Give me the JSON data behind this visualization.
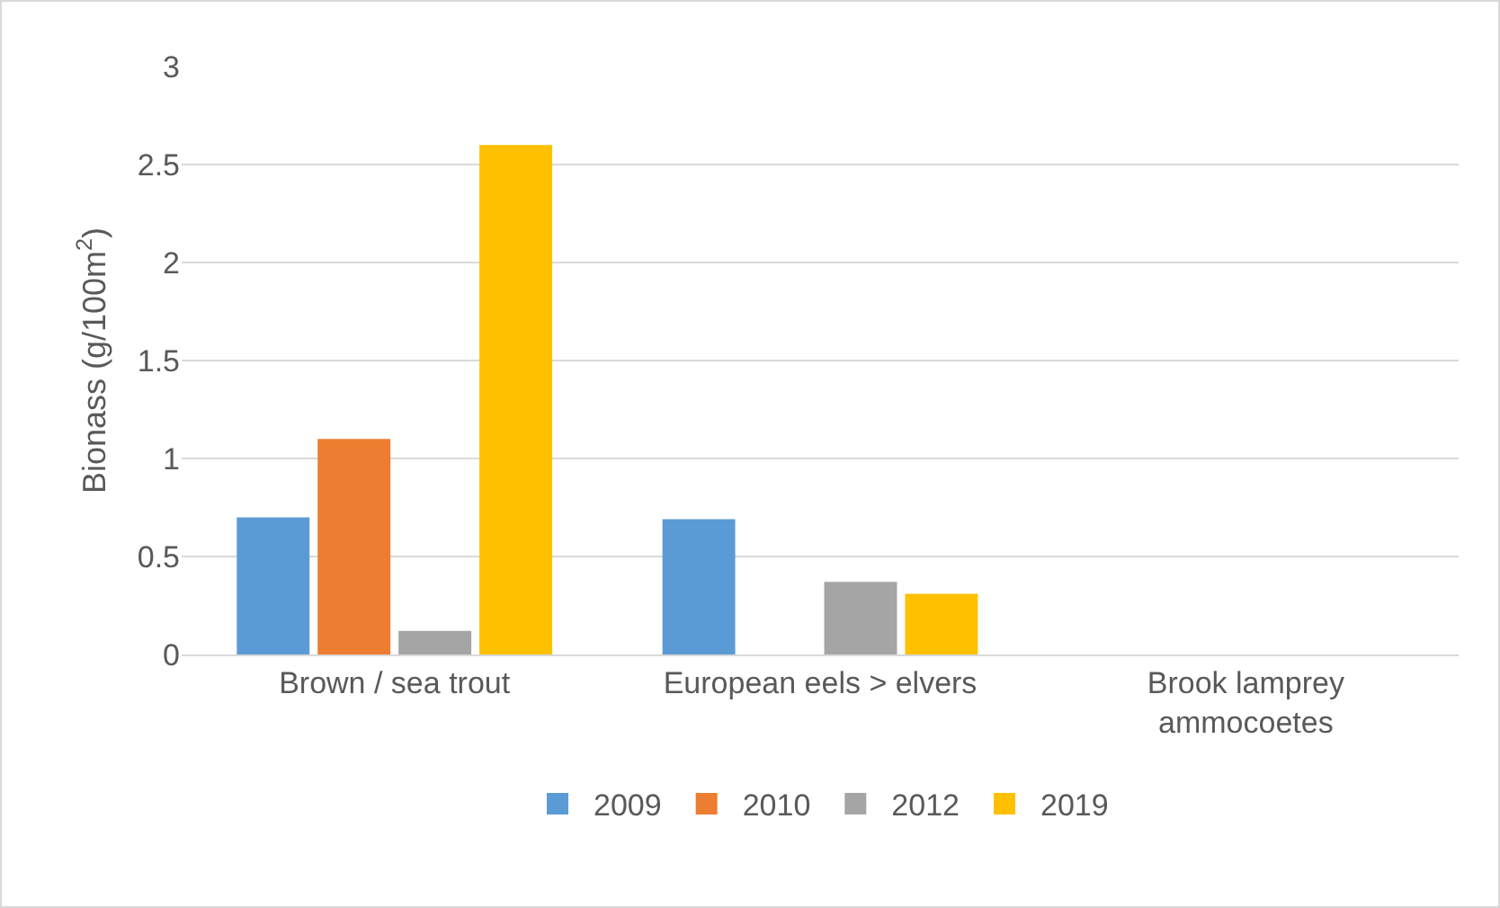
{
  "chart_data": {
    "type": "bar",
    "ylabel": "Bionass (g/100m$^{2}$)",
    "categories": [
      "Brown / sea trout",
      "European eels > elvers",
      "Brook lamprey ammocoetes"
    ],
    "series": [
      {
        "name": "2009",
        "color": "#5b9bd5",
        "values": [
          0.7,
          0.69,
          0
        ]
      },
      {
        "name": "2010",
        "color": "#ed7d31",
        "values": [
          1.1,
          0,
          0
        ]
      },
      {
        "name": "2012",
        "color": "#a5a5a5",
        "values": [
          0.12,
          0.37,
          0
        ]
      },
      {
        "name": "2019",
        "color": "#ffc000",
        "values": [
          2.6,
          0.31,
          0
        ]
      }
    ],
    "ylim": [
      0,
      3
    ],
    "yticks": [
      0,
      0.5,
      1,
      1.5,
      2,
      2.5,
      3
    ],
    "grid": "y",
    "legend": "bottom"
  }
}
